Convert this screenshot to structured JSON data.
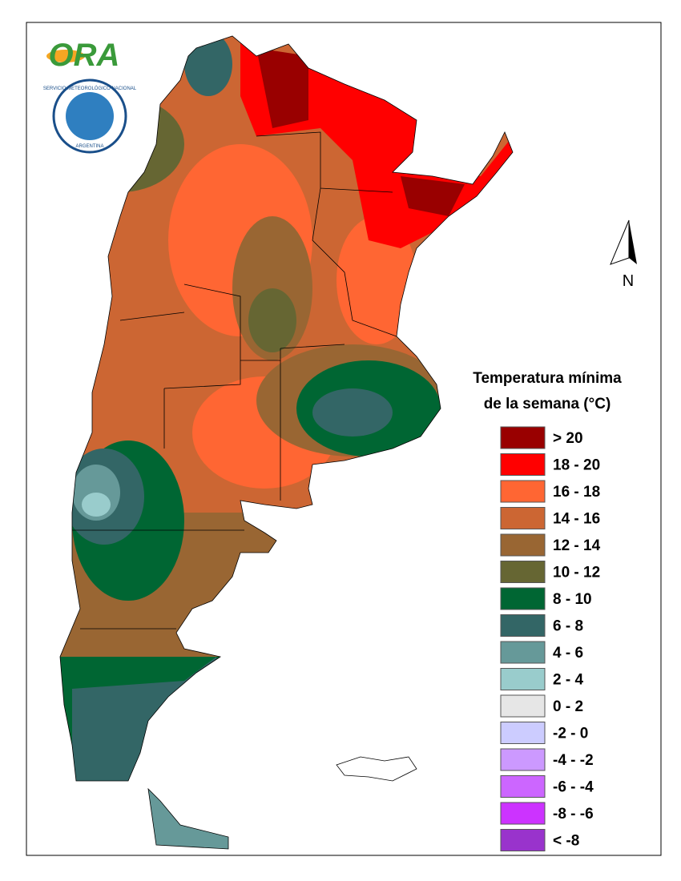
{
  "logo": {
    "name": "ORA",
    "seal_top": "SERVICIO METEOROLÓGICO NACIONAL",
    "seal_bottom": "ARGENTINA"
  },
  "north_arrow": "N",
  "legend": {
    "title": [
      "Temperatura mínima",
      "de la semana (°C)"
    ],
    "items": [
      {
        "label": "> 20",
        "color": "#990000"
      },
      {
        "label": "18 - 20",
        "color": "#ff0000"
      },
      {
        "label": "16 - 18",
        "color": "#ff6633"
      },
      {
        "label": "14 - 16",
        "color": "#cc6633"
      },
      {
        "label": "12 - 14",
        "color": "#996633"
      },
      {
        "label": "10 - 12",
        "color": "#666633"
      },
      {
        "label": "8 - 10",
        "color": "#006633"
      },
      {
        "label": "6 - 8",
        "color": "#336666"
      },
      {
        "label": "4 - 6",
        "color": "#669999"
      },
      {
        "label": "2 - 4",
        "color": "#99cccc"
      },
      {
        "label": "0 - 2",
        "color": "#e6e6e6"
      },
      {
        "label": "-2 - 0",
        "color": "#ccccff"
      },
      {
        "label": "-4 - -2",
        "color": "#cc99ff"
      },
      {
        "label": "-6 - -4",
        "color": "#cc66ff"
      },
      {
        "label": "-8 - -6",
        "color": "#cc33ff"
      },
      {
        "label": "< -8",
        "color": "#9933cc"
      }
    ]
  }
}
